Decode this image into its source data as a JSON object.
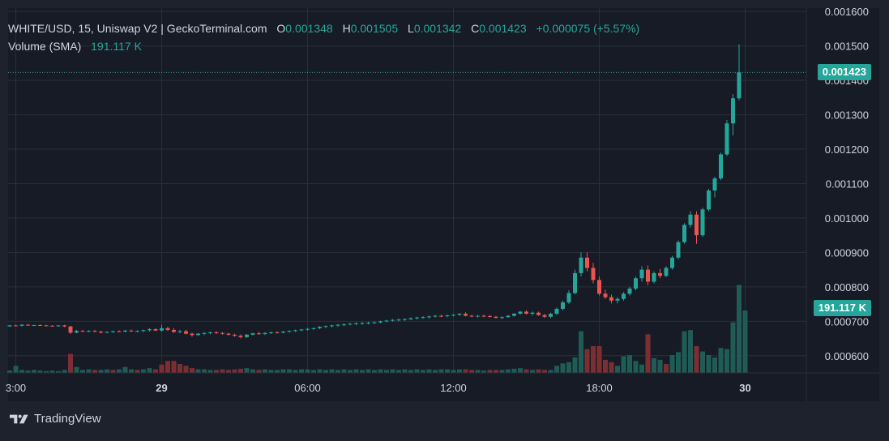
{
  "legend": {
    "title": "WHITE/USD, 15, Uniswap V2 | GeckoTerminal.com",
    "o_label": "O",
    "o_value": "0.001348",
    "h_label": "H",
    "h_value": "0.001505",
    "l_label": "L",
    "l_value": "0.001342",
    "c_label": "C",
    "c_value": "0.001423",
    "change": "+0.000075 (+5.57%)",
    "volume_label": "Volume (SMA)",
    "volume_value": "191.117 K"
  },
  "price_tag": "0.001423",
  "volume_tag": "191.117 K",
  "brand": "TradingView",
  "colors": {
    "background": "#1e222d",
    "up": "#26a69a",
    "down": "#ef5350",
    "vol_up": "#1f5c56",
    "vol_down": "#7c2f33",
    "grid": "#2a2e39",
    "text": "#d1d4dc"
  },
  "chart_data": {
    "type": "candlestick",
    "y_axis": {
      "ticks": [
        "0.001600",
        "0.001500",
        "0.001400",
        "0.001300",
        "0.001200",
        "0.001100",
        "0.001000",
        "0.000900",
        "0.000800",
        "0.000700",
        "0.000600"
      ],
      "ylim": [
        0.00055,
        0.00161
      ]
    },
    "x_axis": {
      "ticks": [
        {
          "label": "3:00",
          "i": 1
        },
        {
          "label": "29",
          "i": 25
        },
        {
          "label": "06:00",
          "i": 49
        },
        {
          "label": "12:00",
          "i": 73
        },
        {
          "label": "18:00",
          "i": 97
        },
        {
          "label": "30",
          "i": 121
        }
      ]
    },
    "last_close": 0.001423,
    "volume_sma": "191.117 K",
    "candles": [
      [
        0.000685,
        0.00069,
        0.000684,
        0.000688
      ],
      [
        0.000688,
        0.00069,
        0.000686,
        0.000687
      ],
      [
        0.000687,
        0.000692,
        0.000685,
        0.00069
      ],
      [
        0.00069,
        0.000692,
        0.000687,
        0.000688
      ],
      [
        0.000688,
        0.00069,
        0.000686,
        0.000689
      ],
      [
        0.000689,
        0.000691,
        0.000687,
        0.000688
      ],
      [
        0.000688,
        0.00069,
        0.000686,
        0.000687
      ],
      [
        0.000687,
        0.000689,
        0.000685,
        0.000686
      ],
      [
        0.000686,
        0.000689,
        0.000684,
        0.000688
      ],
      [
        0.000688,
        0.00069,
        0.000683,
        0.000685
      ],
      [
        0.000685,
        0.000687,
        0.000663,
        0.000667
      ],
      [
        0.000667,
        0.000675,
        0.000665,
        0.000672
      ],
      [
        0.000672,
        0.000675,
        0.000669,
        0.000671
      ],
      [
        0.000671,
        0.000674,
        0.000668,
        0.000672
      ],
      [
        0.000672,
        0.000675,
        0.000668,
        0.00067
      ],
      [
        0.00067,
        0.000672,
        0.000665,
        0.000667
      ],
      [
        0.000667,
        0.000671,
        0.000665,
        0.000669
      ],
      [
        0.000669,
        0.000673,
        0.000666,
        0.000671
      ],
      [
        0.000671,
        0.000674,
        0.000668,
        0.00067
      ],
      [
        0.00067,
        0.000675,
        0.000668,
        0.000673
      ],
      [
        0.000673,
        0.000676,
        0.000669,
        0.000671
      ],
      [
        0.000671,
        0.000674,
        0.000668,
        0.000672
      ],
      [
        0.000672,
        0.000676,
        0.000668,
        0.000674
      ],
      [
        0.000674,
        0.00068,
        0.00067,
        0.000677
      ],
      [
        0.000677,
        0.00068,
        0.000671,
        0.000673
      ],
      [
        0.000673,
        0.00069,
        0.00067,
        0.00068
      ],
      [
        0.00068,
        0.000684,
        0.000672,
        0.000675
      ],
      [
        0.000675,
        0.00068,
        0.000666,
        0.000669
      ],
      [
        0.000669,
        0.000675,
        0.000665,
        0.000671
      ],
      [
        0.000671,
        0.000675,
        0.000662,
        0.000664
      ],
      [
        0.000664,
        0.000667,
        0.000655,
        0.00066
      ],
      [
        0.00066,
        0.000666,
        0.000658,
        0.000664
      ],
      [
        0.000664,
        0.000668,
        0.00066,
        0.000666
      ],
      [
        0.000666,
        0.00067,
        0.000662,
        0.000668
      ],
      [
        0.000668,
        0.000671,
        0.000663,
        0.000666
      ],
      [
        0.000666,
        0.000669,
        0.000661,
        0.000664
      ],
      [
        0.000664,
        0.000667,
        0.000658,
        0.000661
      ],
      [
        0.000661,
        0.000664,
        0.000655,
        0.000658
      ],
      [
        0.000658,
        0.000662,
        0.00065,
        0.000654
      ],
      [
        0.000654,
        0.000663,
        0.000652,
        0.000661
      ],
      [
        0.000661,
        0.000667,
        0.000659,
        0.000665
      ],
      [
        0.000665,
        0.000669,
        0.000661,
        0.000663
      ],
      [
        0.000663,
        0.000668,
        0.00066,
        0.000666
      ],
      [
        0.000666,
        0.00067,
        0.000663,
        0.000668
      ],
      [
        0.000668,
        0.000671,
        0.000664,
        0.000667
      ],
      [
        0.000667,
        0.000672,
        0.000665,
        0.00067
      ],
      [
        0.00067,
        0.000674,
        0.000667,
        0.000672
      ],
      [
        0.000672,
        0.000676,
        0.000669,
        0.000674
      ],
      [
        0.000674,
        0.000678,
        0.000671,
        0.000676
      ],
      [
        0.000676,
        0.00068,
        0.000673,
        0.000678
      ],
      [
        0.000678,
        0.000682,
        0.000675,
        0.00068
      ],
      [
        0.00068,
        0.000686,
        0.000677,
        0.000684
      ],
      [
        0.000684,
        0.000688,
        0.00068,
        0.000686
      ],
      [
        0.000686,
        0.00069,
        0.000682,
        0.000688
      ],
      [
        0.000688,
        0.000692,
        0.000684,
        0.00069
      ],
      [
        0.00069,
        0.000694,
        0.000686,
        0.000691
      ],
      [
        0.000691,
        0.000695,
        0.000688,
        0.000693
      ],
      [
        0.000693,
        0.000697,
        0.000689,
        0.000694
      ],
      [
        0.000694,
        0.000698,
        0.00069,
        0.000695
      ],
      [
        0.000695,
        0.000699,
        0.000691,
        0.000696
      ],
      [
        0.000696,
        0.0007,
        0.000692,
        0.000697
      ],
      [
        0.000697,
        0.000702,
        0.000694,
        0.0007
      ],
      [
        0.0007,
        0.000704,
        0.000697,
        0.000702
      ],
      [
        0.000702,
        0.000706,
        0.000699,
        0.000704
      ],
      [
        0.000704,
        0.000708,
        0.0007,
        0.000705
      ],
      [
        0.000705,
        0.000709,
        0.000701,
        0.000706
      ],
      [
        0.000706,
        0.000711,
        0.000703,
        0.000709
      ],
      [
        0.000709,
        0.000713,
        0.000705,
        0.000711
      ],
      [
        0.000711,
        0.000715,
        0.000707,
        0.000712
      ],
      [
        0.000712,
        0.000716,
        0.000708,
        0.000714
      ],
      [
        0.000714,
        0.000718,
        0.000711,
        0.000716
      ],
      [
        0.000716,
        0.000719,
        0.000712,
        0.000715
      ],
      [
        0.000715,
        0.000719,
        0.000712,
        0.000717
      ],
      [
        0.000717,
        0.000721,
        0.000714,
        0.000719
      ],
      [
        0.000719,
        0.000724,
        0.000716,
        0.000722
      ],
      [
        0.000722,
        0.000726,
        0.000714,
        0.000716
      ],
      [
        0.000716,
        0.000719,
        0.000712,
        0.000714
      ],
      [
        0.000714,
        0.000718,
        0.000711,
        0.000716
      ],
      [
        0.000716,
        0.000719,
        0.000712,
        0.000715
      ],
      [
        0.000715,
        0.000718,
        0.000711,
        0.000713
      ],
      [
        0.000713,
        0.000716,
        0.000708,
        0.00071
      ],
      [
        0.00071,
        0.000714,
        0.000706,
        0.000712
      ],
      [
        0.000712,
        0.000718,
        0.00071,
        0.000716
      ],
      [
        0.000716,
        0.000724,
        0.000714,
        0.000722
      ],
      [
        0.000722,
        0.00073,
        0.000719,
        0.000728
      ],
      [
        0.000728,
        0.000732,
        0.00072,
        0.000722
      ],
      [
        0.000722,
        0.000728,
        0.000717,
        0.000725
      ],
      [
        0.000725,
        0.000728,
        0.000716,
        0.000718
      ],
      [
        0.000718,
        0.000722,
        0.00071,
        0.000713
      ],
      [
        0.000713,
        0.000725,
        0.000709,
        0.000722
      ],
      [
        0.000722,
        0.00074,
        0.000718,
        0.000736
      ],
      [
        0.000736,
        0.00076,
        0.000732,
        0.000755
      ],
      [
        0.000755,
        0.00079,
        0.00075,
        0.000782
      ],
      [
        0.000782,
        0.00085,
        0.000778,
        0.00084
      ],
      [
        0.00084,
        0.0009,
        0.00083,
        0.000885
      ],
      [
        0.000885,
        0.0009,
        0.000845,
        0.000855
      ],
      [
        0.000855,
        0.00087,
        0.00081,
        0.00082
      ],
      [
        0.00082,
        0.00083,
        0.000775,
        0.00078
      ],
      [
        0.00078,
        0.000792,
        0.000765,
        0.00077
      ],
      [
        0.00077,
        0.000778,
        0.000752,
        0.00076
      ],
      [
        0.00076,
        0.00077,
        0.000752,
        0.000765
      ],
      [
        0.000765,
        0.000785,
        0.00076,
        0.00078
      ],
      [
        0.00078,
        0.0008,
        0.000775,
        0.000795
      ],
      [
        0.000795,
        0.00083,
        0.00079,
        0.000825
      ],
      [
        0.000825,
        0.00086,
        0.000815,
        0.00085
      ],
      [
        0.00085,
        0.000862,
        0.000805,
        0.000815
      ],
      [
        0.000815,
        0.000845,
        0.00081,
        0.00084
      ],
      [
        0.00084,
        0.000852,
        0.000825,
        0.000832
      ],
      [
        0.000832,
        0.00086,
        0.000828,
        0.000855
      ],
      [
        0.000855,
        0.00089,
        0.00085,
        0.000885
      ],
      [
        0.000885,
        0.000935,
        0.00088,
        0.00093
      ],
      [
        0.00093,
        0.000985,
        0.000925,
        0.00098
      ],
      [
        0.00098,
        0.00102,
        0.000972,
        0.00101
      ],
      [
        0.00101,
        0.00102,
        0.000925,
        0.00095
      ],
      [
        0.00095,
        0.00103,
        0.000945,
        0.001025
      ],
      [
        0.001025,
        0.001085,
        0.00102,
        0.00108
      ],
      [
        0.00108,
        0.00112,
        0.00106,
        0.001115
      ],
      [
        0.001115,
        0.00119,
        0.00111,
        0.001185
      ],
      [
        0.001185,
        0.001285,
        0.00118,
        0.001275
      ],
      [
        0.001275,
        0.00136,
        0.00124,
        0.001348
      ],
      [
        0.001348,
        0.001505,
        0.001342,
        0.001423
      ]
    ],
    "volumes": [
      [
        4,
        1
      ],
      [
        12,
        1
      ],
      [
        5,
        1
      ],
      [
        4,
        1
      ],
      [
        5,
        1
      ],
      [
        4,
        1
      ],
      [
        3,
        1
      ],
      [
        4,
        1
      ],
      [
        3,
        1
      ],
      [
        5,
        1
      ],
      [
        32,
        0
      ],
      [
        10,
        1
      ],
      [
        5,
        1
      ],
      [
        6,
        1
      ],
      [
        5,
        0
      ],
      [
        5,
        1
      ],
      [
        6,
        1
      ],
      [
        5,
        0
      ],
      [
        6,
        1
      ],
      [
        10,
        1
      ],
      [
        6,
        1
      ],
      [
        5,
        0
      ],
      [
        6,
        1
      ],
      [
        8,
        1
      ],
      [
        6,
        0
      ],
      [
        14,
        0
      ],
      [
        20,
        0
      ],
      [
        20,
        0
      ],
      [
        15,
        0
      ],
      [
        12,
        0
      ],
      [
        8,
        0
      ],
      [
        6,
        1
      ],
      [
        6,
        1
      ],
      [
        5,
        1
      ],
      [
        5,
        0
      ],
      [
        6,
        0
      ],
      [
        5,
        0
      ],
      [
        6,
        0
      ],
      [
        7,
        0
      ],
      [
        8,
        1
      ],
      [
        6,
        1
      ],
      [
        5,
        0
      ],
      [
        6,
        1
      ],
      [
        5,
        1
      ],
      [
        5,
        1
      ],
      [
        6,
        1
      ],
      [
        6,
        1
      ],
      [
        5,
        1
      ],
      [
        6,
        1
      ],
      [
        6,
        1
      ],
      [
        5,
        1
      ],
      [
        6,
        1
      ],
      [
        5,
        1
      ],
      [
        6,
        1
      ],
      [
        5,
        1
      ],
      [
        6,
        1
      ],
      [
        5,
        1
      ],
      [
        6,
        1
      ],
      [
        5,
        1
      ],
      [
        6,
        1
      ],
      [
        5,
        1
      ],
      [
        6,
        1
      ],
      [
        5,
        1
      ],
      [
        6,
        1
      ],
      [
        5,
        1
      ],
      [
        6,
        1
      ],
      [
        5,
        1
      ],
      [
        6,
        1
      ],
      [
        5,
        1
      ],
      [
        6,
        1
      ],
      [
        5,
        1
      ],
      [
        6,
        1
      ],
      [
        6,
        1
      ],
      [
        5,
        1
      ],
      [
        6,
        1
      ],
      [
        6,
        0
      ],
      [
        5,
        0
      ],
      [
        5,
        1
      ],
      [
        4,
        1
      ],
      [
        5,
        0
      ],
      [
        5,
        0
      ],
      [
        5,
        1
      ],
      [
        6,
        1
      ],
      [
        7,
        1
      ],
      [
        8,
        1
      ],
      [
        6,
        0
      ],
      [
        5,
        1
      ],
      [
        6,
        0
      ],
      [
        5,
        0
      ],
      [
        5,
        1
      ],
      [
        12,
        1
      ],
      [
        16,
        1
      ],
      [
        18,
        1
      ],
      [
        26,
        1
      ],
      [
        70,
        1
      ],
      [
        40,
        0
      ],
      [
        45,
        0
      ],
      [
        45,
        0
      ],
      [
        22,
        0
      ],
      [
        18,
        0
      ],
      [
        12,
        1
      ],
      [
        28,
        1
      ],
      [
        30,
        1
      ],
      [
        20,
        1
      ],
      [
        14,
        1
      ],
      [
        65,
        0
      ],
      [
        25,
        1
      ],
      [
        22,
        1
      ],
      [
        15,
        0
      ],
      [
        30,
        1
      ],
      [
        35,
        1
      ],
      [
        70,
        1
      ],
      [
        72,
        1
      ],
      [
        45,
        0
      ],
      [
        36,
        1
      ],
      [
        30,
        1
      ],
      [
        26,
        1
      ],
      [
        42,
        1
      ],
      [
        40,
        1
      ],
      [
        85,
        1
      ],
      [
        148,
        1
      ],
      [
        105,
        1
      ]
    ]
  }
}
